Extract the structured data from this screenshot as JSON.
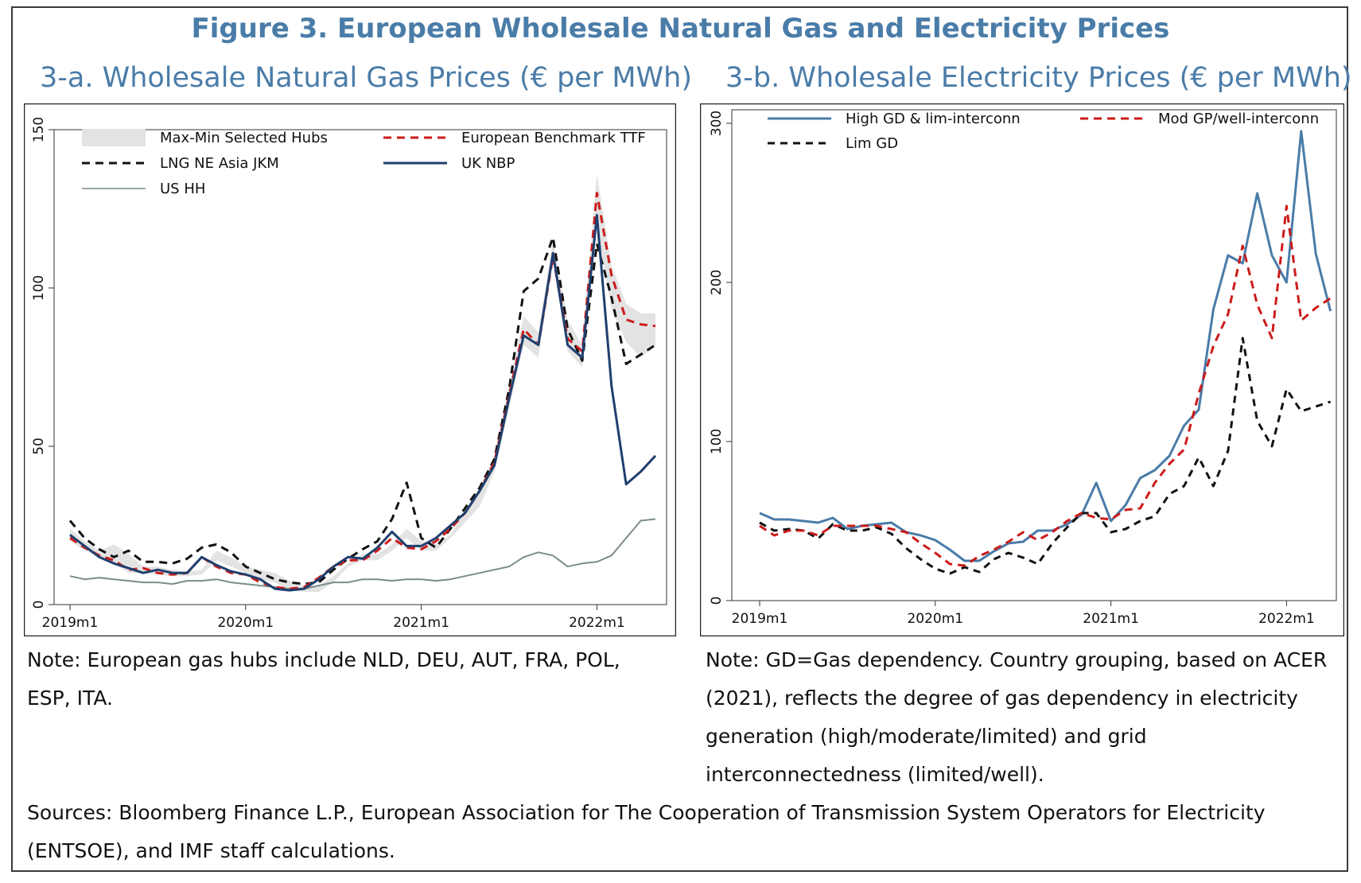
{
  "figure_title": "Figure 3. European Wholesale Natural Gas and Electricity Prices",
  "chart_data": [
    {
      "type": "line",
      "title": "3-a. Wholesale Natural Gas Prices (€ per MWh)",
      "ylim": [
        0,
        150
      ],
      "yticks": [
        0,
        50,
        100,
        150
      ],
      "xticks": [
        {
          "t": 0,
          "label": "2019m1"
        },
        {
          "t": 12,
          "label": "2020m1"
        },
        {
          "t": 24,
          "label": "2021m1"
        },
        {
          "t": 36,
          "label": "2022m1"
        }
      ],
      "xlim": [
        0,
        41
      ],
      "band": {
        "name": "Max-Min Selected Hubs",
        "color": "#e3e3e3",
        "upper": [
          24,
          20,
          17,
          19,
          16,
          12,
          12,
          11,
          10.5,
          11,
          17,
          15,
          12,
          11,
          10,
          7.5,
          6,
          6,
          9,
          13,
          16,
          16,
          19,
          24,
          20,
          19,
          22,
          30,
          37,
          47,
          69,
          91,
          86,
          115,
          90,
          82,
          136,
          107,
          95,
          92,
          92
        ],
        "lower": [
          20,
          17,
          15,
          13,
          10,
          10,
          9.5,
          9,
          9,
          9.5,
          14,
          12,
          10,
          8,
          7,
          4.5,
          4,
          4,
          7,
          12,
          14,
          14,
          17,
          21,
          17,
          17,
          21,
          26,
          31,
          42,
          62,
          82,
          78,
          108,
          80,
          75,
          119,
          93,
          83,
          78,
          82
        ]
      },
      "series": [
        {
          "name": "European Benchmark TTF",
          "color": "#cc1b1b",
          "dash": "10,7",
          "width": 3,
          "values": [
            21,
            18,
            15.5,
            14,
            11,
            11.5,
            10,
            9.5,
            10,
            15,
            12,
            10,
            9.5,
            7,
            5.5,
            5,
            5.5,
            8.5,
            12,
            14,
            14,
            17,
            21,
            18,
            17.5,
            20,
            24,
            29,
            36,
            45,
            66,
            87,
            82,
            110,
            84,
            80,
            130,
            104,
            90,
            88.5,
            88
          ]
        },
        {
          "name": "LNG NE Asia JKM",
          "color": "#111111",
          "dash": "10,7",
          "width": 3,
          "values": [
            26.5,
            21,
            17.5,
            15,
            17,
            13.5,
            13.5,
            13,
            14.5,
            18,
            19,
            16.5,
            12,
            10,
            8,
            7,
            6.5,
            7,
            11,
            14.5,
            17.5,
            20,
            27,
            38.5,
            21,
            18,
            24,
            30.5,
            37,
            46,
            68,
            99,
            103,
            116,
            87,
            77,
            114,
            97,
            76,
            79,
            82
          ]
        },
        {
          "name": "UK NBP",
          "color": "#1f3f6e",
          "dash": "",
          "width": 3,
          "values": [
            22,
            18.5,
            15,
            13,
            11.5,
            10,
            11,
            10,
            10,
            15,
            12.5,
            10.5,
            9.5,
            8,
            5,
            4.5,
            5,
            8,
            12,
            15,
            14.5,
            18,
            23,
            18.5,
            18.5,
            21,
            25,
            29,
            36,
            44,
            65,
            85,
            82,
            111,
            82,
            78,
            123,
            69,
            38,
            42,
            47
          ]
        },
        {
          "name": "US HH",
          "color": "#7b8c8c",
          "dash": "",
          "width": 2,
          "values": [
            9,
            8,
            8.5,
            8,
            7.5,
            7,
            7,
            6.5,
            7.5,
            7.5,
            8,
            7,
            6.5,
            6,
            5.5,
            5,
            5,
            6,
            7,
            7,
            8,
            8,
            7.5,
            8,
            8,
            7.5,
            8,
            9,
            10,
            11,
            12,
            15,
            16.5,
            15.5,
            12,
            13,
            13.5,
            15.5,
            21,
            26.5,
            27
          ]
        }
      ],
      "legend": [
        {
          "label": "Max-Min Selected Hubs",
          "kind": "band",
          "color": "#e3e3e3"
        },
        {
          "label": "European Benchmark TTF",
          "kind": "line",
          "color": "#cc1b1b",
          "dash": "10,7"
        },
        {
          "label": "LNG NE Asia JKM",
          "kind": "line",
          "color": "#111111",
          "dash": "10,7"
        },
        {
          "label": "UK NBP",
          "kind": "line",
          "color": "#1f3f6e",
          "dash": ""
        },
        {
          "label": "US HH",
          "kind": "line",
          "color": "#7b8c8c",
          "dash": "",
          "thin": true
        }
      ]
    },
    {
      "type": "line",
      "title": "3-b. Wholesale Electricity Prices (€ per MWh)",
      "ylim": [
        0,
        300
      ],
      "yticks": [
        0,
        100,
        200,
        300
      ],
      "xticks": [
        {
          "t": 0,
          "label": "2019m1"
        },
        {
          "t": 12,
          "label": "2020m1"
        },
        {
          "t": 24,
          "label": "2021m1"
        },
        {
          "t": 36,
          "label": "2022m1"
        }
      ],
      "xlim": [
        0,
        39
      ],
      "series": [
        {
          "name": "High GD & lim-interconn",
          "color": "#4a7ca8",
          "dash": "",
          "width": 3,
          "values": [
            55,
            51,
            51,
            50,
            49,
            52,
            45,
            47,
            48,
            49,
            43,
            41,
            38,
            32,
            25,
            25,
            31,
            36,
            37,
            44,
            44,
            48,
            54,
            74,
            50,
            60,
            77,
            82,
            91,
            110,
            120,
            183,
            217,
            212,
            256,
            217,
            200,
            295,
            218,
            182
          ]
        },
        {
          "name": "Mod GP/well-interconn",
          "color": "#cc1b1b",
          "dash": "10,7",
          "width": 3,
          "values": [
            47,
            41,
            44,
            44,
            41,
            47,
            47,
            47,
            47,
            45,
            43,
            36,
            30,
            23,
            22,
            28,
            32,
            37,
            43,
            38,
            43,
            50,
            55,
            52,
            51,
            57,
            58,
            74,
            86,
            95,
            130,
            160,
            180,
            223,
            186,
            165,
            248,
            176,
            184,
            190
          ]
        },
        {
          "name": "Lim GD",
          "color": "#111111",
          "dash": "9,7",
          "width": 3,
          "values": [
            49,
            44,
            45,
            44,
            39,
            48,
            44,
            44,
            46,
            42,
            33,
            26,
            20,
            17,
            21,
            18,
            26,
            30,
            27,
            23,
            36,
            46,
            55,
            55,
            43,
            45,
            50,
            53,
            67,
            72,
            90,
            72,
            94,
            165,
            113,
            97,
            133,
            119,
            122,
            125
          ]
        }
      ],
      "legend": [
        {
          "label": "High GD & lim-interconn",
          "kind": "line",
          "color": "#4a7ca8",
          "dash": ""
        },
        {
          "label": "Mod GP/well-interconn",
          "kind": "line",
          "color": "#cc1b1b",
          "dash": "10,7"
        },
        {
          "label": "Lim GD",
          "kind": "line",
          "color": "#111111",
          "dash": "9,7"
        }
      ]
    }
  ],
  "notes": {
    "a": "Note: European gas hubs include NLD, DEU, AUT, FRA, POL, ESP, ITA.",
    "b": "Note: GD=Gas dependency. Country grouping, based on ACER (2021), reflects the degree of gas dependency in electricity generation (high/moderate/limited) and grid interconnectedness (limited/well).",
    "sources": "Sources: Bloomberg Finance L.P., European Association for The Cooperation of Transmission System Operators for Electricity (ENTSOE), and IMF staff calculations."
  }
}
